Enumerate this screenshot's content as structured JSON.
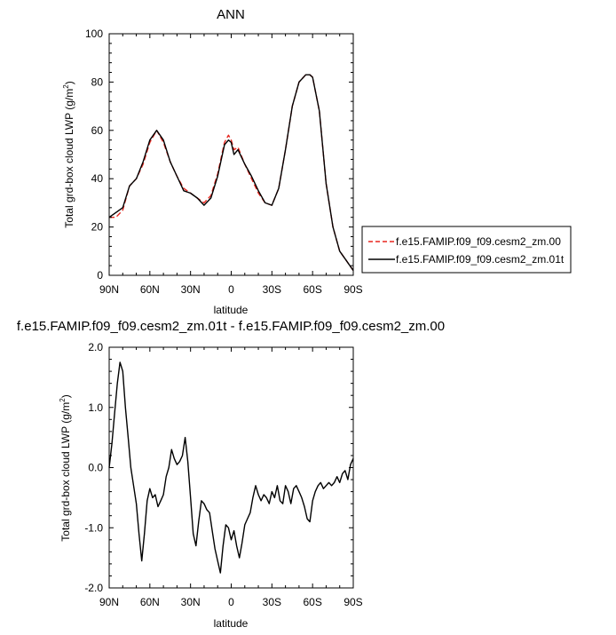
{
  "chart_data": [
    {
      "type": "line",
      "title": "ANN",
      "xlabel": "latitude",
      "ylabel": "Total grd-box cloud LWP (g/m²)",
      "xlim": [
        90,
        -90
      ],
      "ylim": [
        0,
        100
      ],
      "xticks": [
        {
          "value": 90,
          "label": "90N"
        },
        {
          "value": 60,
          "label": "60N"
        },
        {
          "value": 30,
          "label": "30N"
        },
        {
          "value": 0,
          "label": "0"
        },
        {
          "value": -30,
          "label": "30S"
        },
        {
          "value": -60,
          "label": "60S"
        },
        {
          "value": -90,
          "label": "90S"
        }
      ],
      "yticks": [
        {
          "value": 0,
          "label": "0"
        },
        {
          "value": 20,
          "label": "20"
        },
        {
          "value": 40,
          "label": "40"
        },
        {
          "value": 60,
          "label": "60"
        },
        {
          "value": 80,
          "label": "80"
        },
        {
          "value": 100,
          "label": "100"
        }
      ],
      "series": [
        {
          "name": "f.e15.FAMIP.f09_f09.cesm2_zm.00",
          "color": "#e8271f",
          "dash": true,
          "x": [
            90,
            85,
            80,
            75,
            70,
            65,
            60,
            55,
            50,
            45,
            40,
            35,
            30,
            25,
            20,
            15,
            10,
            5,
            2,
            0,
            -2,
            -5,
            -10,
            -15,
            -20,
            -25,
            -30,
            -35,
            -40,
            -45,
            -50,
            -55,
            -58,
            -60,
            -65,
            -70,
            -75,
            -80,
            -85,
            -90
          ],
          "y": [
            24,
            24,
            27,
            37,
            40,
            46,
            55,
            60,
            55,
            47,
            41,
            36,
            34,
            32,
            30,
            33,
            42,
            55,
            58,
            56,
            52,
            53,
            46,
            40,
            34,
            30,
            29,
            36,
            52,
            70,
            80,
            83,
            83,
            82,
            68,
            38,
            20,
            10,
            6,
            2
          ]
        },
        {
          "name": "f.e15.FAMIP.f09_f09.cesm2_zm.01t",
          "color": "#000000",
          "dash": false,
          "x": [
            90,
            85,
            80,
            75,
            70,
            65,
            60,
            55,
            50,
            45,
            40,
            35,
            30,
            25,
            20,
            15,
            10,
            5,
            2,
            0,
            -2,
            -5,
            -10,
            -15,
            -20,
            -25,
            -30,
            -35,
            -40,
            -45,
            -50,
            -55,
            -58,
            -60,
            -65,
            -70,
            -75,
            -80,
            -85,
            -90
          ],
          "y": [
            24,
            26,
            28,
            37,
            40,
            47,
            56,
            60,
            56,
            47,
            41,
            35,
            34,
            32,
            29,
            32,
            41,
            54,
            56,
            55,
            50,
            52,
            46,
            41,
            35,
            30,
            29,
            36,
            52,
            70,
            80,
            83,
            83,
            82,
            68,
            38,
            20,
            10,
            6,
            2
          ]
        }
      ],
      "legend": {
        "position": "right"
      }
    },
    {
      "type": "line",
      "title": "f.e15.FAMIP.f09_f09.cesm2_zm.01t - f.e15.FAMIP.f09_f09.cesm2_zm.00",
      "xlabel": "latitude",
      "ylabel": "Total grd-box cloud LWP (g/m²)",
      "xlim": [
        90,
        -90
      ],
      "ylim": [
        -2.0,
        2.0
      ],
      "xticks": [
        {
          "value": 90,
          "label": "90N"
        },
        {
          "value": 60,
          "label": "60N"
        },
        {
          "value": 30,
          "label": "30N"
        },
        {
          "value": 0,
          "label": "0"
        },
        {
          "value": -30,
          "label": "30S"
        },
        {
          "value": -60,
          "label": "60S"
        },
        {
          "value": -90,
          "label": "90S"
        }
      ],
      "yticks": [
        {
          "value": -2.0,
          "label": "-2.0"
        },
        {
          "value": -1.0,
          "label": "-1.0"
        },
        {
          "value": 0.0,
          "label": "0.0"
        },
        {
          "value": 1.0,
          "label": "1.0"
        },
        {
          "value": 2.0,
          "label": "2.0"
        }
      ],
      "series": [
        {
          "name": "difference",
          "color": "#000000",
          "dash": false,
          "x": [
            90,
            88,
            86,
            84,
            82,
            80,
            78,
            76,
            74,
            72,
            70,
            68,
            66,
            64,
            62,
            60,
            58,
            56,
            54,
            52,
            50,
            48,
            46,
            44,
            42,
            40,
            38,
            36,
            34,
            32,
            30,
            28,
            26,
            24,
            22,
            20,
            18,
            16,
            14,
            12,
            10,
            8,
            6,
            4,
            2,
            0,
            -2,
            -4,
            -6,
            -8,
            -10,
            -12,
            -14,
            -16,
            -18,
            -20,
            -22,
            -24,
            -26,
            -28,
            -30,
            -32,
            -34,
            -36,
            -38,
            -40,
            -42,
            -44,
            -46,
            -48,
            -50,
            -52,
            -54,
            -56,
            -58,
            -60,
            -62,
            -64,
            -66,
            -68,
            -70,
            -72,
            -74,
            -76,
            -78,
            -80,
            -82,
            -84,
            -86,
            -88,
            -90
          ],
          "y": [
            0.0,
            0.4,
            0.9,
            1.4,
            1.75,
            1.6,
            1.0,
            0.5,
            0.0,
            -0.3,
            -0.6,
            -1.1,
            -1.55,
            -1.1,
            -0.55,
            -0.35,
            -0.5,
            -0.45,
            -0.65,
            -0.55,
            -0.45,
            -0.15,
            0.0,
            0.3,
            0.15,
            0.05,
            0.1,
            0.2,
            0.5,
            0.1,
            -0.5,
            -1.1,
            -1.3,
            -0.9,
            -0.55,
            -0.6,
            -0.7,
            -0.75,
            -1.05,
            -1.35,
            -1.55,
            -1.75,
            -1.3,
            -0.95,
            -1.0,
            -1.2,
            -1.05,
            -1.3,
            -1.5,
            -1.25,
            -0.95,
            -0.85,
            -0.75,
            -0.5,
            -0.3,
            -0.45,
            -0.55,
            -0.45,
            -0.5,
            -0.6,
            -0.4,
            -0.5,
            -0.3,
            -0.55,
            -0.6,
            -0.3,
            -0.4,
            -0.6,
            -0.35,
            -0.3,
            -0.4,
            -0.5,
            -0.65,
            -0.85,
            -0.9,
            -0.55,
            -0.4,
            -0.3,
            -0.25,
            -0.35,
            -0.3,
            -0.25,
            -0.3,
            -0.25,
            -0.15,
            -0.25,
            -0.1,
            -0.05,
            -0.2,
            0.05,
            0.15
          ]
        }
      ]
    }
  ]
}
